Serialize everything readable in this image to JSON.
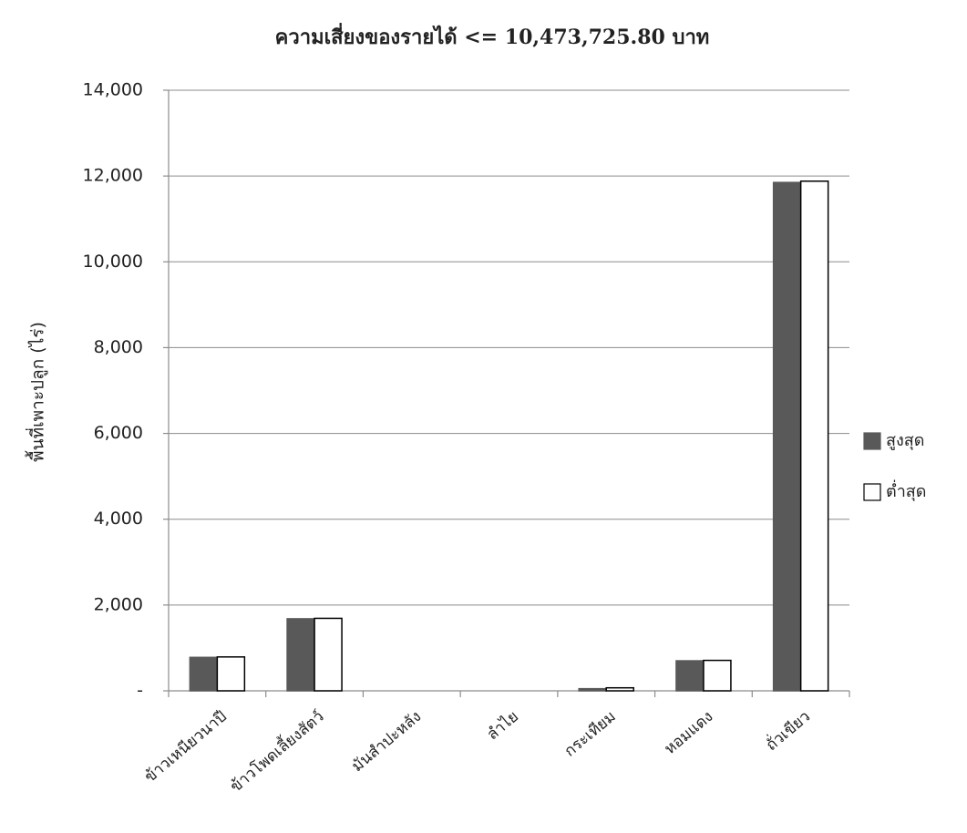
{
  "chart_data": {
    "type": "bar",
    "title": "ความเสี่ยงของรายได้ <= 10,473,725.80 บาท",
    "y_label": "พื้นที่เพาะปลูก (ไร่)",
    "categories": [
      "ข้าวเหนียวนาปี",
      "ข้าวโพดเลี้ยงสัตว์",
      "มันสำปะหลัง",
      "ลำไย",
      "กระเทียม",
      "หอมแดง",
      "ถั่วเขียว"
    ],
    "series": [
      {
        "name": "สูงสุด",
        "color": "#595959",
        "values": [
          780,
          1680,
          0,
          0,
          50,
          700,
          11850
        ]
      },
      {
        "name": "ต่ำสุด",
        "color": "#ffffff",
        "values": [
          790,
          1690,
          0,
          0,
          70,
          710,
          11880
        ]
      }
    ],
    "ylim": [
      0,
      14000
    ],
    "yticks": [
      {
        "value": 0,
        "label": "-"
      },
      {
        "value": 2000,
        "label": "2,000"
      },
      {
        "value": 4000,
        "label": "4,000"
      },
      {
        "value": 6000,
        "label": "6,000"
      },
      {
        "value": 8000,
        "label": "8,000"
      },
      {
        "value": 10000,
        "label": "10,000"
      },
      {
        "value": 12000,
        "label": "12,000"
      },
      {
        "value": 14000,
        "label": "14,000"
      }
    ],
    "grid": true,
    "legend": "right"
  }
}
